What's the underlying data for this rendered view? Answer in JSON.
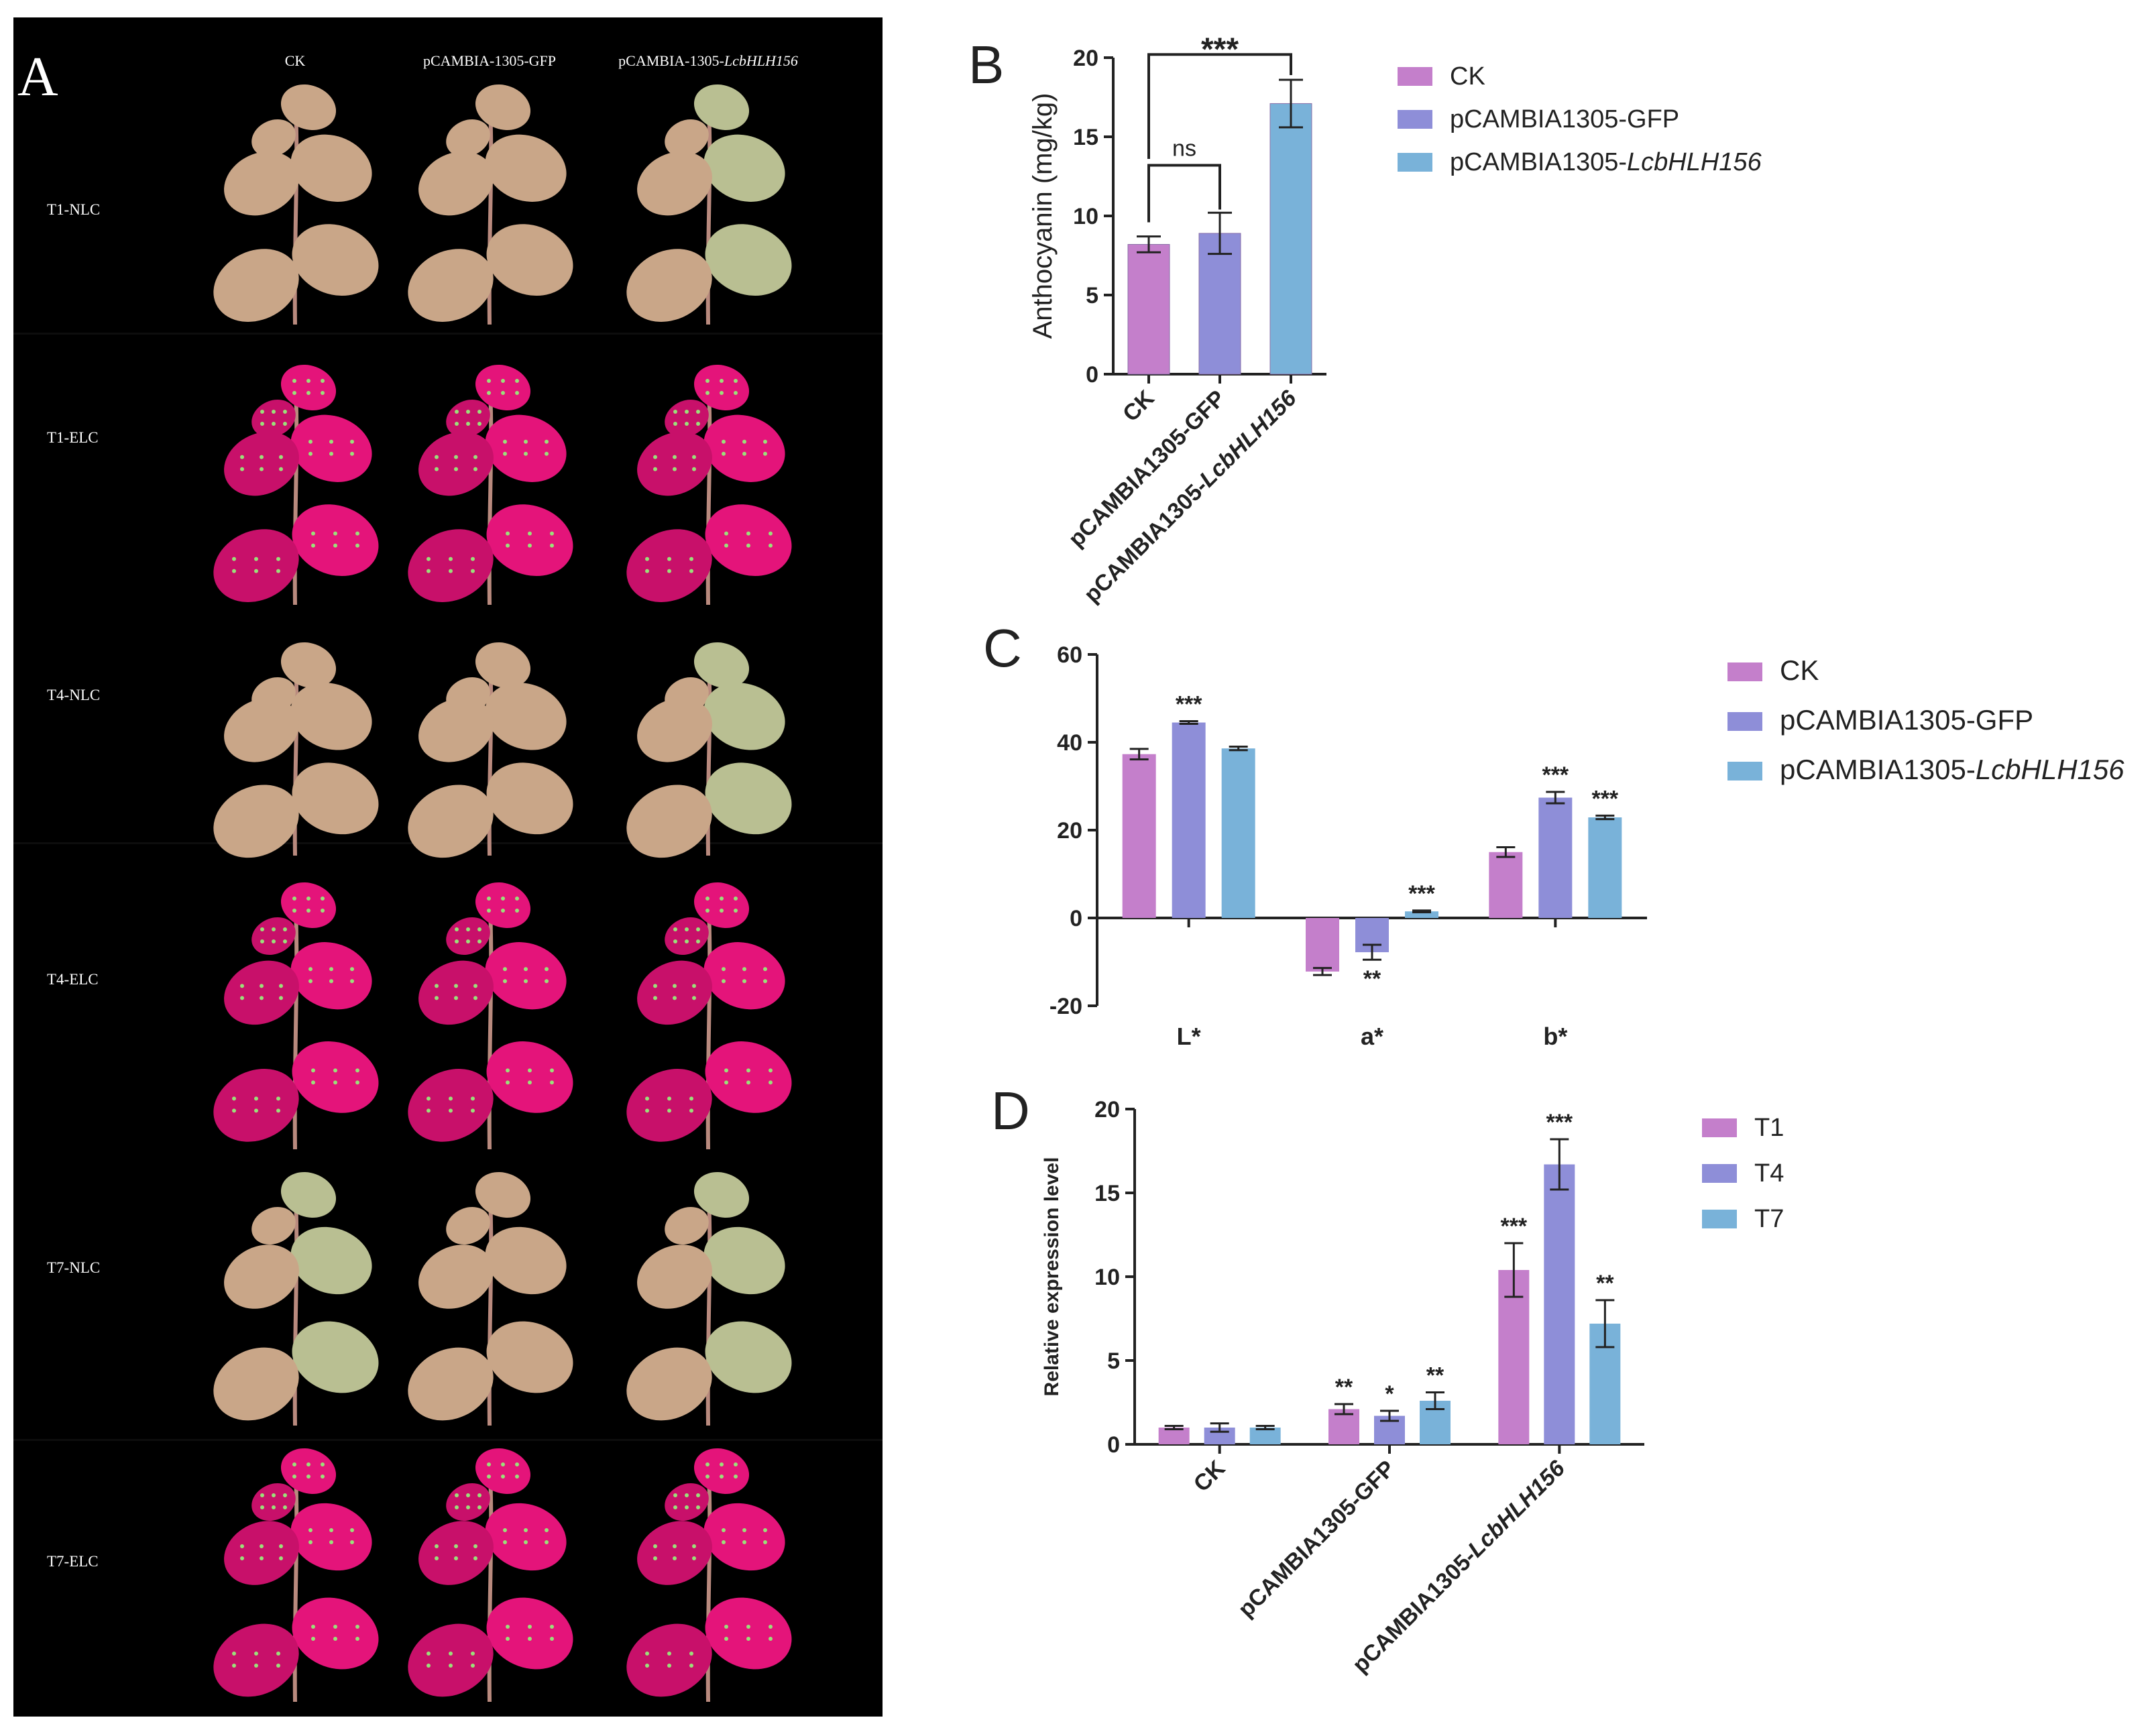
{
  "panel_a": {
    "letter": "A",
    "columns": [
      {
        "label": "CK"
      },
      {
        "label": "pCAMBIA-1305-GFP"
      },
      {
        "label": "pCAMBIA-1305-",
        "italic": "LcbHLH156"
      }
    ],
    "rows": [
      "T1-NLC",
      "T1-ELC",
      "T4-NLC",
      "T4-ELC",
      "T7-NLC",
      "T7-ELC"
    ],
    "colors": {
      "nlc_leaf": "#c9a688",
      "nlc_leaf_green": "#b9bf92",
      "elc_leaf": "#e4147a",
      "stem": "#b98a7e",
      "background": "#000000"
    }
  },
  "chart_data": [
    {
      "letter": "B",
      "type": "bar",
      "ylabel": "Anthocyanin (mg/kg)",
      "ylim": [
        0,
        20
      ],
      "yticks": [
        0,
        5,
        10,
        15,
        20
      ],
      "categories": [
        {
          "pre": "CK",
          "ital": ""
        },
        {
          "pre": "pCAMBIA1305-GFP",
          "ital": ""
        },
        {
          "pre": "pCAMBIA1305-",
          "ital": "LcbHLH156"
        }
      ],
      "series": [
        {
          "values": [
            8.2,
            8.9,
            17.1
          ],
          "errors": [
            0.5,
            1.3,
            1.5
          ],
          "colors": [
            "#c47fcb",
            "#8e8ed8",
            "#79b2d9"
          ]
        }
      ],
      "legend": [
        {
          "pre": "CK",
          "ital": "",
          "color": "#c47fcb"
        },
        {
          "pre": "pCAMBIA1305-GFP",
          "ital": "",
          "color": "#8e8ed8"
        },
        {
          "pre": "pCAMBIA1305-",
          "ital": "LcbHLH156",
          "color": "#79b2d9"
        }
      ],
      "legend_position": "right",
      "brackets": [
        {
          "from": 0,
          "to": 1,
          "label": "ns"
        },
        {
          "from": 0,
          "to": 2,
          "label": "***"
        }
      ]
    },
    {
      "letter": "C",
      "type": "bar",
      "ylim": [
        -20,
        60
      ],
      "yticks": [
        -20,
        0,
        20,
        40,
        60
      ],
      "categories": [
        "L*",
        "a*",
        "b*"
      ],
      "series": [
        {
          "name": "CK",
          "color": "#c47fcb",
          "values": [
            37.3,
            -12.2,
            15.0
          ],
          "errors": [
            1.2,
            0.8,
            1.1
          ],
          "stars": [
            "",
            "",
            ""
          ]
        },
        {
          "name": "pCAMBIA1305-GFP",
          "color": "#8e8ed8",
          "values": [
            44.5,
            -7.8,
            27.4
          ],
          "errors": [
            0.3,
            1.7,
            1.3
          ],
          "stars": [
            "***",
            "**",
            "***"
          ]
        },
        {
          "name": "pCAMBIA1305-LcbHLH156",
          "legend_pre": "pCAMBIA1305-",
          "legend_ital": "LcbHLH156",
          "color": "#79b2d9",
          "values": [
            38.6,
            1.5,
            22.9
          ],
          "errors": [
            0.4,
            0.2,
            0.4
          ],
          "stars": [
            "",
            "***",
            "***"
          ]
        }
      ],
      "legend_position": "right"
    },
    {
      "letter": "D",
      "type": "bar",
      "ylabel": "Relative expression level",
      "ylim": [
        0,
        20
      ],
      "yticks": [
        0,
        5,
        10,
        15,
        20
      ],
      "categories": [
        {
          "pre": "CK",
          "ital": ""
        },
        {
          "pre": "pCAMBIA1305-GFP",
          "ital": ""
        },
        {
          "pre": "pCAMBIA1305-",
          "ital": "LcbHLH156"
        }
      ],
      "series": [
        {
          "name": "T1",
          "color": "#c47fcb",
          "values": [
            1.0,
            2.1,
            10.4
          ],
          "errors": [
            0.1,
            0.3,
            1.6
          ],
          "stars": [
            "",
            "**",
            "***"
          ]
        },
        {
          "name": "T4",
          "color": "#8e8ed8",
          "values": [
            1.0,
            1.7,
            16.7
          ],
          "errors": [
            0.25,
            0.3,
            1.5
          ],
          "stars": [
            "",
            "*",
            "***"
          ]
        },
        {
          "name": "T7",
          "color": "#79b2d9",
          "values": [
            1.0,
            2.6,
            7.2
          ],
          "errors": [
            0.1,
            0.5,
            1.4
          ],
          "stars": [
            "",
            "**",
            "**"
          ]
        }
      ],
      "legend_position": "right"
    }
  ]
}
